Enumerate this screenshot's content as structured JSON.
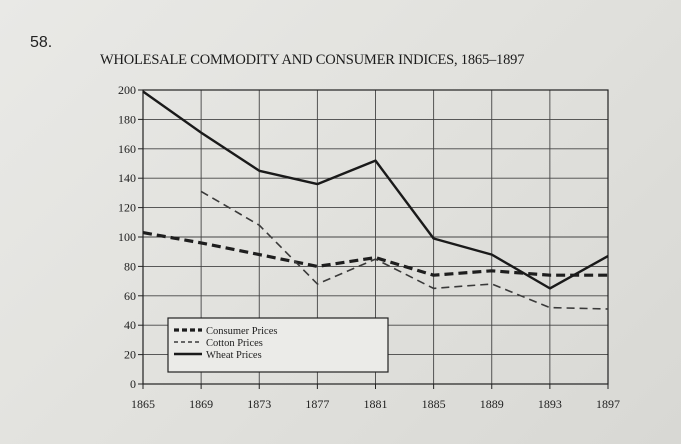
{
  "question_number": "58.",
  "chart_data": {
    "type": "line",
    "title": "WHOLESALE COMMODITY AND CONSUMER INDICES, 1865–1897",
    "xlabel": "",
    "ylabel": "",
    "x": [
      1865,
      1869,
      1873,
      1877,
      1881,
      1885,
      1889,
      1893,
      1897
    ],
    "xlim": [
      1865,
      1897
    ],
    "ylim": [
      0,
      200
    ],
    "y_ticks": [
      0,
      20,
      40,
      60,
      80,
      100,
      120,
      140,
      160,
      180,
      200
    ],
    "grid": true,
    "legend_position": "lower-left",
    "series": [
      {
        "name": "Consumer Prices",
        "style": "bold-dashed",
        "color": "#1e1e1e",
        "points": [
          [
            1865,
            103
          ],
          [
            1869,
            96
          ],
          [
            1873,
            88
          ],
          [
            1877,
            80
          ],
          [
            1881,
            86
          ],
          [
            1885,
            74
          ],
          [
            1889,
            77
          ],
          [
            1893,
            74
          ],
          [
            1897,
            74
          ]
        ]
      },
      {
        "name": "Cotton Prices",
        "style": "thin-dashed",
        "color": "#3a3a3a",
        "points": [
          [
            1869,
            131
          ],
          [
            1873,
            108
          ],
          [
            1877,
            68
          ],
          [
            1881,
            85
          ],
          [
            1885,
            65
          ],
          [
            1889,
            68
          ],
          [
            1893,
            52
          ],
          [
            1897,
            51
          ]
        ]
      },
      {
        "name": "Wheat Prices",
        "style": "solid",
        "color": "#1a1a1a",
        "points": [
          [
            1865,
            199
          ],
          [
            1869,
            171
          ],
          [
            1873,
            145
          ],
          [
            1877,
            136
          ],
          [
            1881,
            152
          ],
          [
            1885,
            99
          ],
          [
            1889,
            88
          ],
          [
            1893,
            65
          ],
          [
            1897,
            87
          ]
        ]
      }
    ]
  }
}
